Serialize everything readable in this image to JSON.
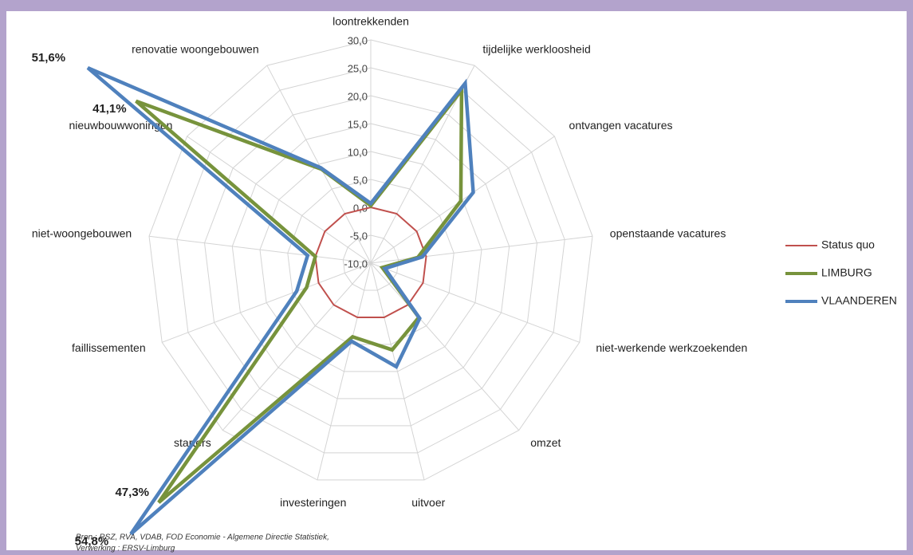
{
  "chart_data": {
    "type": "radar",
    "categories": [
      "loontrekkenden",
      "tijdelijke werkloosheid",
      "ontvangen vacatures",
      "openstaande vacatures",
      "niet-werkende werkzoekenden",
      "omzet",
      "uitvoer",
      "investeringen",
      "starters",
      "faillissementen",
      "niet-woongebouwen",
      "nieuwbouwwoningen",
      "renovatie woongebouwen"
    ],
    "series": [
      {
        "name": "Status quo",
        "color": "#c0504d",
        "values": [
          0,
          0,
          0,
          0,
          0,
          0,
          0,
          0,
          0,
          0,
          0,
          0,
          0
        ]
      },
      {
        "name": "LIMBURG",
        "color": "#77933c",
        "values": [
          0.3,
          25,
          9.6,
          -1.5,
          -7.8,
          3,
          6,
          3.6,
          47.3,
          2.3,
          0,
          41.1,
          9
        ],
        "value_labels": [
          null,
          null,
          null,
          null,
          null,
          null,
          null,
          null,
          "47,3%",
          null,
          null,
          "41,1%",
          null
        ]
      },
      {
        "name": "VLAANDEREN",
        "color": "#4f81bd",
        "values": [
          0.7,
          26.4,
          12.3,
          -0.7,
          -7.3,
          3.2,
          9.1,
          4.4,
          54.8,
          4.2,
          1.4,
          51.6,
          9.3
        ],
        "value_labels": [
          null,
          null,
          null,
          null,
          null,
          null,
          null,
          null,
          "54,8%",
          null,
          null,
          "51,6%",
          null
        ]
      }
    ],
    "ylim": [
      -10,
      30
    ],
    "yticks": [
      {
        "value": -10,
        "label": "-10,0"
      },
      {
        "value": -5,
        "label": "-5,0"
      },
      {
        "value": 0,
        "label": "0,0"
      },
      {
        "value": 5,
        "label": "5,0"
      },
      {
        "value": 10,
        "label": "10,0"
      },
      {
        "value": 15,
        "label": "15,0"
      },
      {
        "value": 20,
        "label": "20,0"
      },
      {
        "value": 25,
        "label": "25,0"
      },
      {
        "value": 30,
        "label": "30,0"
      }
    ],
    "grid": true,
    "legend": "right",
    "source": [
      "Bron : RSZ, RVA, VDAB, FOD Economie - Algemene Directie Statistiek,",
      "Verwerking : ERSV-Limburg"
    ]
  }
}
